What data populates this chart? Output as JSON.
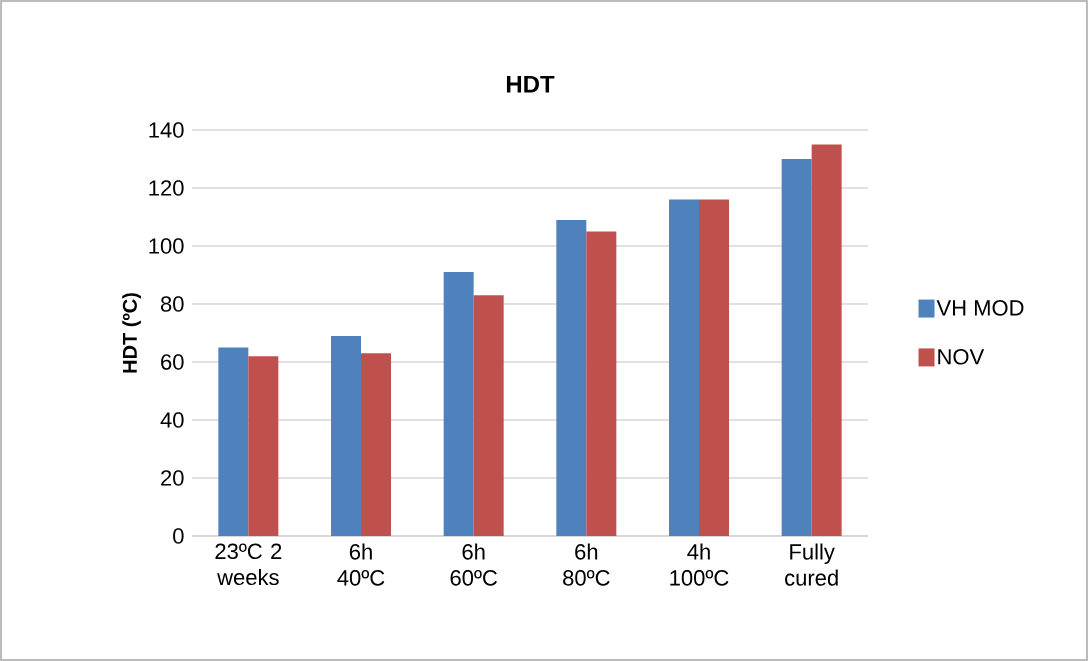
{
  "chart_data": {
    "type": "bar",
    "title": "HDT",
    "ylabel": "HDT (ºC)",
    "categories": [
      "23ºC 2 weeks",
      "6h 40ºC",
      "6h 60ºC",
      "6h 80ºC",
      "4h 100ºC",
      "Fully cured"
    ],
    "series": [
      {
        "name": "VH MOD",
        "color": "#4f81bd",
        "values": [
          65,
          69,
          91,
          109,
          116,
          130
        ]
      },
      {
        "name": "NOV",
        "color": "#c0504d",
        "values": [
          62,
          63,
          83,
          105,
          116,
          135
        ]
      }
    ],
    "ylim": [
      0,
      140
    ],
    "yticks": [
      0,
      20,
      40,
      60,
      80,
      100,
      120,
      140
    ],
    "grid": "y",
    "legend": "right"
  }
}
